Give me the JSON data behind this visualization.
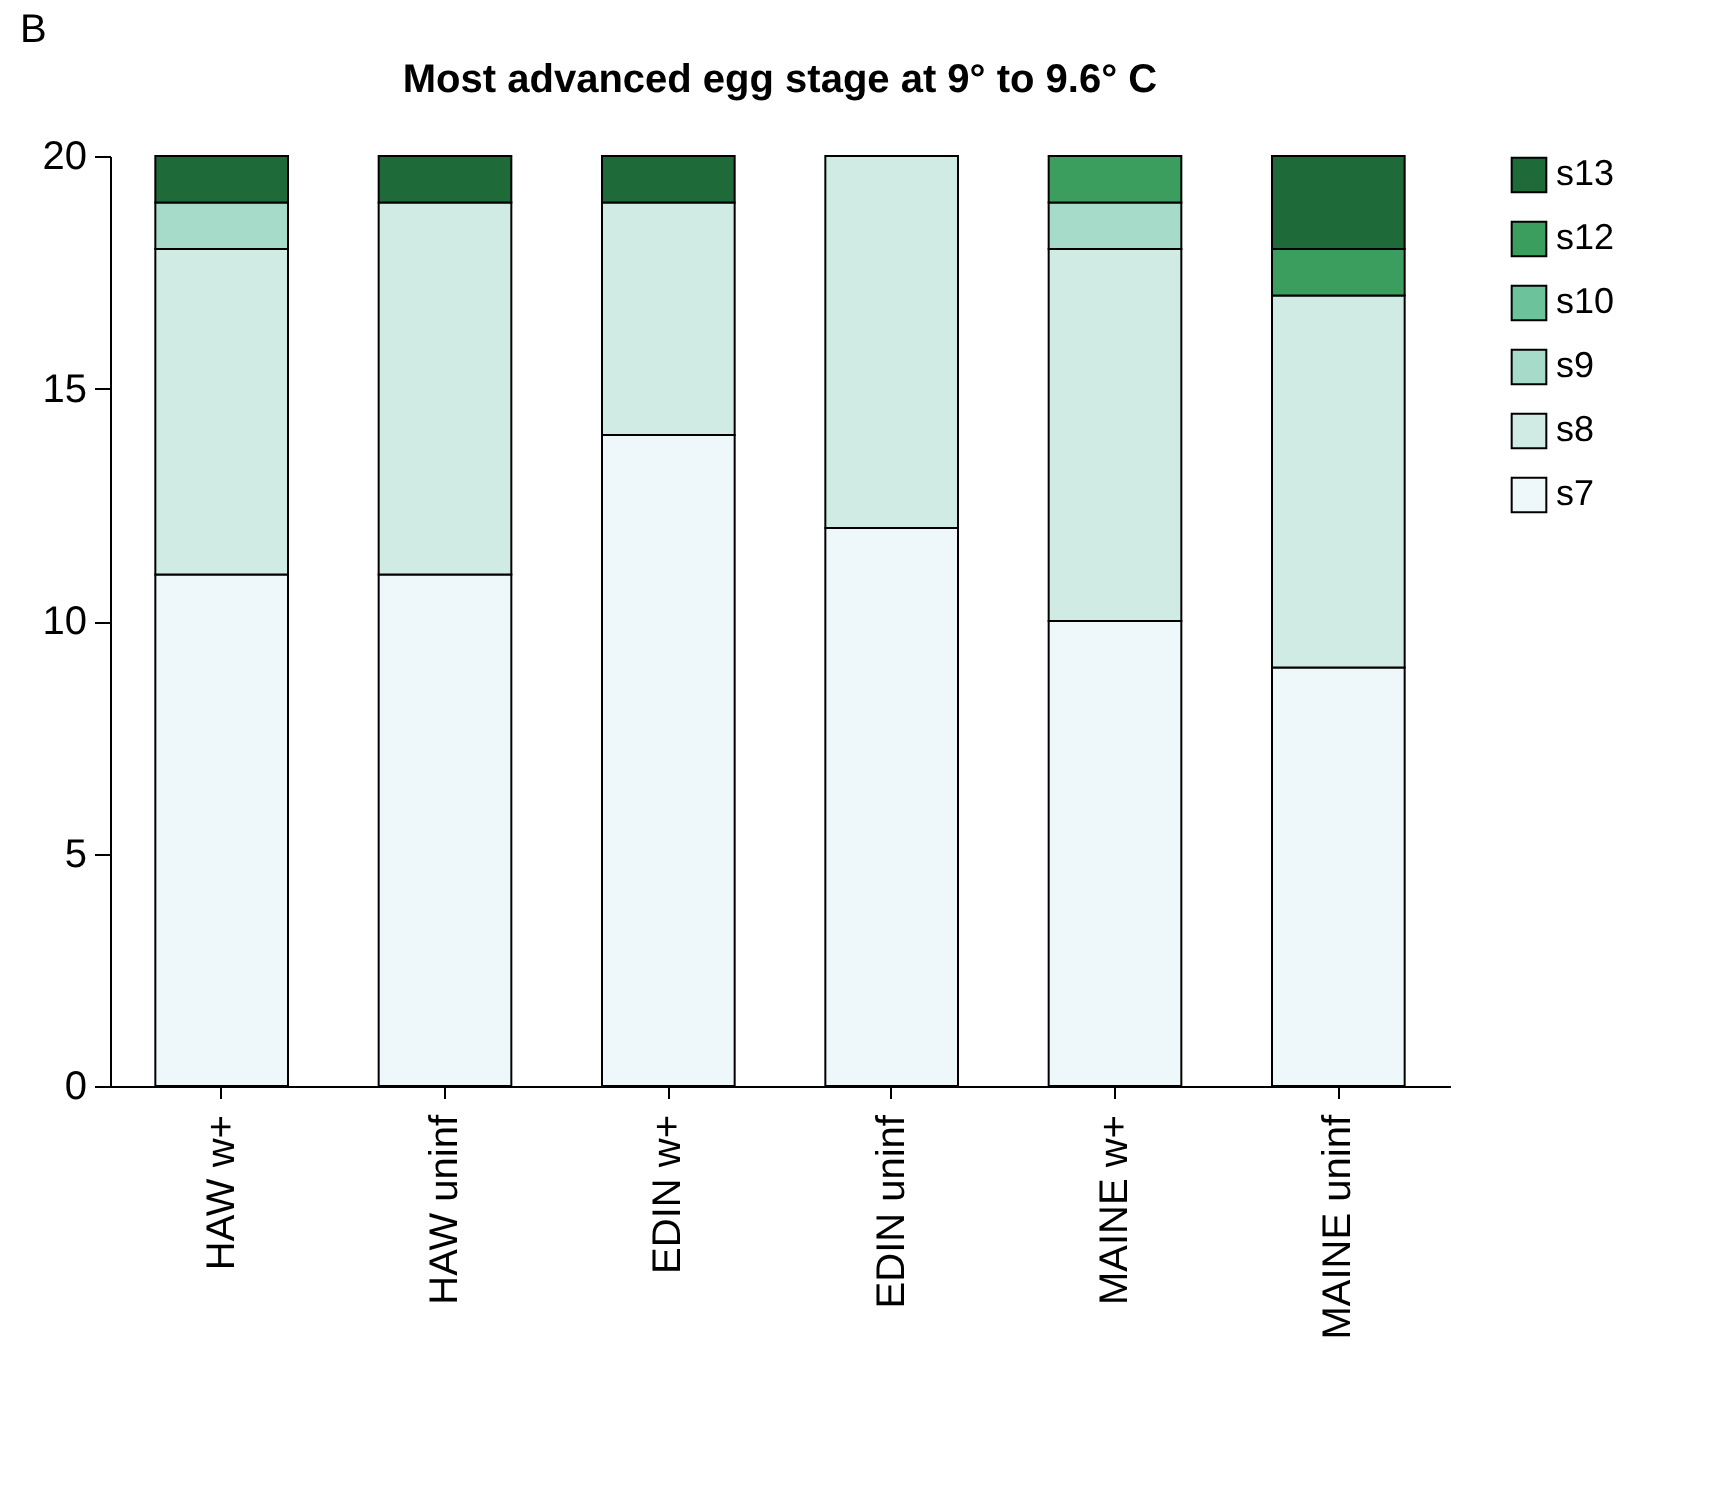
{
  "chart_data": {
    "type": "bar",
    "title": "Most advanced egg stage at 9° to 9.6° C",
    "annotations": [
      "B"
    ],
    "categories": [
      "HAW w+",
      "HAW uninf",
      "EDIN w+",
      "EDIN uninf",
      "MAINE w+",
      "MAINE uninf"
    ],
    "stacked": true,
    "ylim": [
      0,
      20
    ],
    "yticks": [
      0,
      5,
      10,
      15,
      20
    ],
    "grid": false,
    "legend": "right",
    "series": [
      {
        "name": "s7",
        "color": "#eef7f9",
        "values": [
          11,
          11,
          14,
          12,
          10,
          9
        ]
      },
      {
        "name": "s8",
        "color": "#d0ebe3",
        "values": [
          7,
          8,
          5,
          8,
          8,
          8
        ]
      },
      {
        "name": "s9",
        "color": "#a6dbc9",
        "values": [
          1,
          null,
          null,
          null,
          1,
          null
        ]
      },
      {
        "name": "s10",
        "color": "#6cc29b",
        "values": [
          null,
          null,
          null,
          null,
          null,
          null
        ]
      },
      {
        "name": "s12",
        "color": "#3c9e5e",
        "values": [
          null,
          null,
          null,
          null,
          1,
          1
        ]
      },
      {
        "name": "s13",
        "color": "#1e6b39",
        "values": [
          1,
          1,
          1,
          null,
          null,
          2
        ]
      }
    ]
  }
}
